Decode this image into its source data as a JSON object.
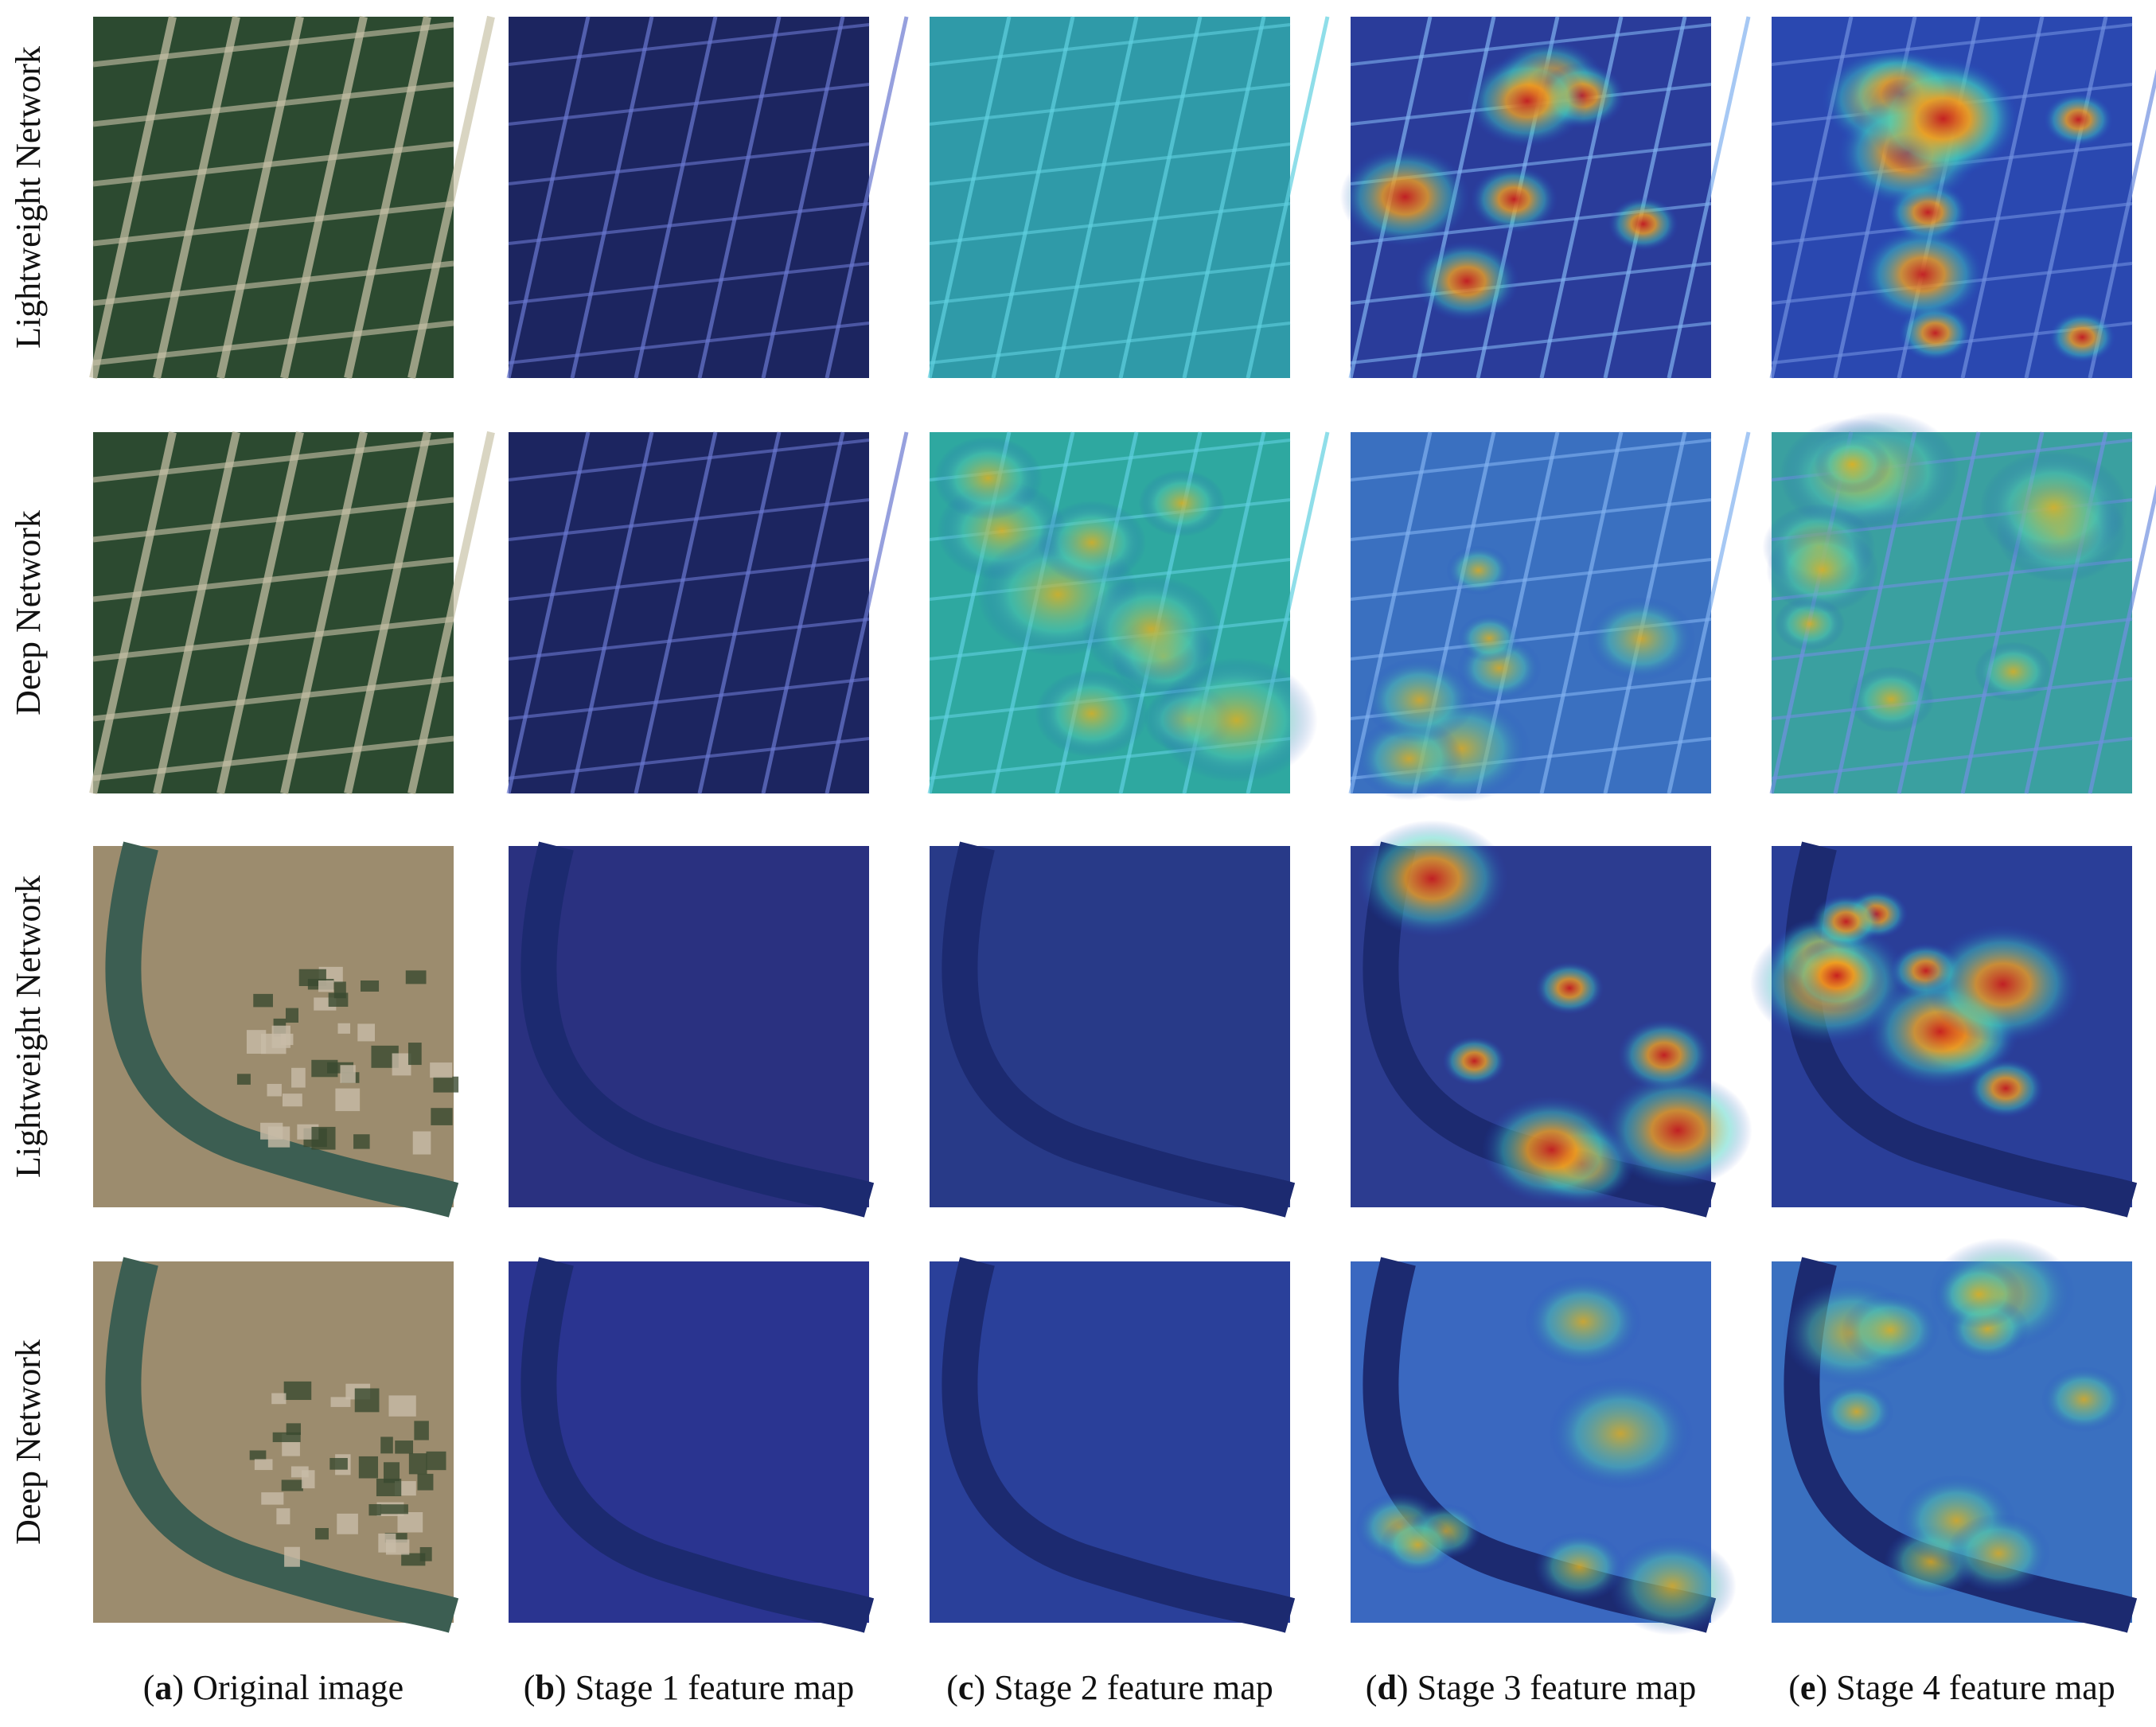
{
  "row_labels": [
    "Lightweight Network",
    "Deep Network",
    "Lightweight Network",
    "Deep Network"
  ],
  "captions": [
    [
      "(",
      "a",
      ") Original image"
    ],
    [
      "(",
      "b",
      ") Stage 1 feature map"
    ],
    [
      "(",
      "c",
      ") Stage 2 feature map"
    ],
    [
      "(",
      "d",
      ") Stage 3 feature map"
    ],
    [
      "(",
      "e",
      ") Stage 4 feature map"
    ]
  ]
}
